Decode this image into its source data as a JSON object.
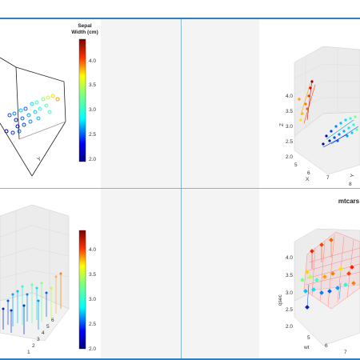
{
  "panels": {
    "top_left": {
      "legend_title_line1": "Sepal",
      "legend_title_line2": "Width (cm)",
      "legend_ticks": [
        "4.0",
        "3.5",
        "3.0",
        "2.5",
        "2.0"
      ],
      "axis_labels": [
        "Y"
      ]
    },
    "top_right": {
      "z_ticks": [
        "4.0",
        "3.5",
        "3.0",
        "2.5",
        "2.0"
      ],
      "x_ticks": [
        "5",
        "6",
        "7",
        "8"
      ],
      "axis_labels": [
        "Z",
        "X",
        "Y"
      ]
    },
    "bottom_left": {
      "legend_ticks": [
        "4.0",
        "3.5",
        "3.0",
        "2.5",
        "2.0"
      ],
      "y_ticks": [
        "1",
        "2",
        "3",
        "4",
        "5",
        "6"
      ]
    },
    "bottom_right": {
      "title": "mtcars",
      "z_ticks": [
        "4.0",
        "3.5",
        "3.0",
        "2.5",
        "2.0"
      ],
      "x_ticks": [
        "5",
        "6",
        "7"
      ],
      "axis_labels": [
        "qsec",
        "wt"
      ]
    }
  },
  "colors": {
    "accent": "#2f7fc1",
    "divider": "#7fb3dd",
    "panel_gray": "#f4f4f4",
    "jet_low": "#00007f",
    "jet_high": "#7f0000"
  }
}
